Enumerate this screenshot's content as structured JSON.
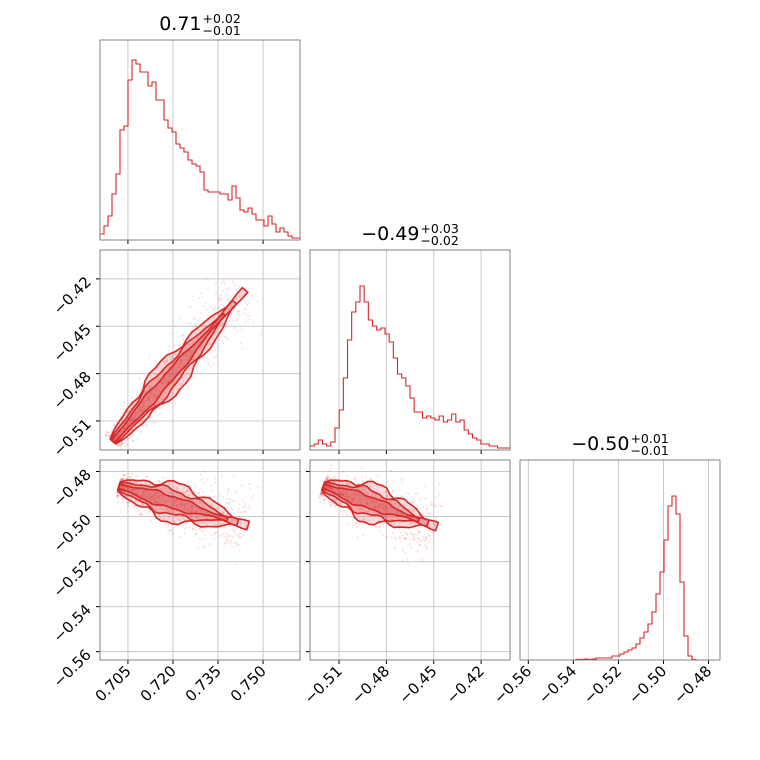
{
  "chart_data": {
    "type": "corner",
    "color": "#d62728",
    "parameters": [
      {
        "title": {
          "median": "0.71",
          "plus": "+0.02",
          "minus": "−0.01"
        }
      },
      {
        "title": {
          "median": "−0.49",
          "plus": "+0.03",
          "minus": "−0.02"
        }
      },
      {
        "title": {
          "median": "−0.50",
          "plus": "+0.01",
          "minus": "−0.01"
        }
      }
    ],
    "ranges": [
      [
        0.6957,
        0.7623
      ],
      [
        -0.5284,
        -0.4017
      ],
      [
        -0.5637,
        -0.4749
      ]
    ],
    "ticks": [
      {
        "values": [
          0.705,
          0.72,
          0.735,
          0.75
        ],
        "labels": [
          "0.705",
          "0.720",
          "0.735",
          "0.750"
        ]
      },
      {
        "values": [
          -0.51,
          -0.48,
          -0.45,
          -0.42
        ],
        "labels": [
          "−0.51",
          "−0.48",
          "−0.45",
          "−0.42"
        ]
      },
      {
        "values": [
          -0.56,
          -0.54,
          -0.52,
          -0.5,
          -0.48
        ],
        "labels": [
          "−0.56",
          "−0.54",
          "−0.52",
          "−0.50",
          "−0.48"
        ]
      }
    ],
    "histograms": [
      [
        0.03,
        0.07,
        0.12,
        0.23,
        0.33,
        0.55,
        0.57,
        0.8,
        0.9,
        0.88,
        0.84,
        0.84,
        0.77,
        0.79,
        0.7,
        0.7,
        0.6,
        0.56,
        0.54,
        0.48,
        0.46,
        0.44,
        0.4,
        0.38,
        0.37,
        0.34,
        0.25,
        0.24,
        0.24,
        0.24,
        0.23,
        0.23,
        0.2,
        0.27,
        0.21,
        0.15,
        0.14,
        0.16,
        0.13,
        0.1,
        0.1,
        0.07,
        0.12,
        0.08,
        0.04,
        0.06,
        0.04,
        0.02,
        0.01,
        0.01
      ],
      [
        0.02,
        0.03,
        0.05,
        0.03,
        0.02,
        0.04,
        0.11,
        0.2,
        0.36,
        0.55,
        0.69,
        0.74,
        0.82,
        0.74,
        0.65,
        0.62,
        0.6,
        0.61,
        0.58,
        0.54,
        0.46,
        0.38,
        0.36,
        0.32,
        0.26,
        0.19,
        0.19,
        0.16,
        0.17,
        0.16,
        0.15,
        0.17,
        0.14,
        0.15,
        0.18,
        0.14,
        0.15,
        0.1,
        0.08,
        0.06,
        0.05,
        0.03,
        0.03,
        0.02,
        0.02,
        0.01,
        0.01,
        0.01
      ],
      [
        0,
        0,
        0,
        0,
        0,
        0,
        0,
        0,
        0,
        0,
        0,
        0,
        0,
        0,
        0.003,
        0.003,
        0.005,
        0.003,
        0.005,
        0.01,
        0.01,
        0.01,
        0.01,
        0.02,
        0.02,
        0.03,
        0.04,
        0.05,
        0.06,
        0.08,
        0.11,
        0.14,
        0.18,
        0.24,
        0.33,
        0.44,
        0.6,
        0.77,
        0.82,
        0.73,
        0.39,
        0.12,
        0.02,
        0.003,
        0,
        0,
        0,
        0,
        0,
        0
      ]
    ],
    "pairs": [
      {
        "x": 0,
        "y": 1,
        "center_start": [
          0.7,
          -0.523
        ],
        "center_end": [
          0.744,
          -0.427
        ],
        "width": 0.0035
      },
      {
        "x": 0,
        "y": 2,
        "center_start": [
          0.702,
          -0.4865
        ],
        "center_end": [
          0.745,
          -0.504
        ],
        "width": 0.003
      },
      {
        "x": 1,
        "y": 2,
        "center_start": [
          -0.52,
          -0.4865
        ],
        "center_end": [
          -0.448,
          -0.5045
        ],
        "width": 0.003
      }
    ]
  }
}
